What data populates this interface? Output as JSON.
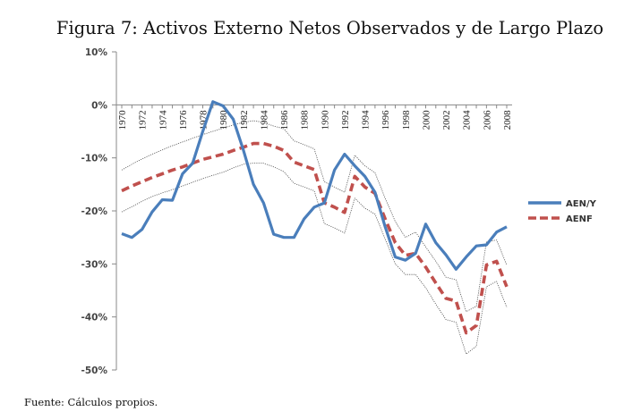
{
  "chart_data": {
    "type": "line",
    "title": "Figura 7: Activos Externo Netos Observados y de Largo Plazo",
    "source_note": "Fuente: Cálculos propios.",
    "xlabel": "",
    "ylabel": "",
    "ylim": [
      -50,
      10
    ],
    "y_ticks": [
      "10%",
      "0%",
      "-10%",
      "-20%",
      "-30%",
      "-40%",
      "-50%"
    ],
    "y_tick_values": [
      10,
      0,
      -10,
      -20,
      -30,
      -40,
      -50
    ],
    "x_ticks": [
      "1970",
      "1972",
      "1974",
      "1976",
      "1978",
      "1980",
      "1982",
      "1984",
      "1986",
      "1988",
      "1990",
      "1992",
      "1994",
      "1996",
      "1998",
      "2000",
      "2002",
      "2004",
      "2006",
      "2008"
    ],
    "x": [
      1970,
      1971,
      1972,
      1973,
      1974,
      1975,
      1976,
      1977,
      1978,
      1979,
      1980,
      1981,
      1982,
      1983,
      1984,
      1985,
      1986,
      1987,
      1988,
      1989,
      1990,
      1991,
      1992,
      1993,
      1994,
      1995,
      1996,
      1997,
      1998,
      1999,
      2000,
      2001,
      2002,
      2003,
      2004,
      2005,
      2006,
      2007,
      2008
    ],
    "grid": false,
    "legend_position": "right",
    "series": [
      {
        "name": "AEN/Y",
        "style": "solid",
        "color": "#4a7ebb",
        "values": [
          -24.3,
          -25.0,
          -23.5,
          -20.2,
          -17.9,
          -18.0,
          -13.0,
          -11.0,
          -5.0,
          0.6,
          -0.2,
          -2.7,
          -8.5,
          -15.0,
          -18.5,
          -24.4,
          -25.0,
          -25.0,
          -21.5,
          -19.3,
          -18.5,
          -12.3,
          -9.3,
          -11.5,
          -13.5,
          -16.5,
          -23.0,
          -28.7,
          -29.3,
          -28.0,
          -22.5,
          -26.0,
          -28.3,
          -31.0,
          -28.7,
          -26.6,
          -26.4,
          -24.0,
          -23.0
        ]
      },
      {
        "name": "AENF",
        "style": "dashed",
        "color": "#c0504d",
        "values": [
          -16.2,
          -15.3,
          -14.5,
          -13.7,
          -13.0,
          -12.3,
          -11.7,
          -11.0,
          -10.3,
          -9.8,
          -9.3,
          -8.6,
          -8.0,
          -7.3,
          -7.3,
          -7.8,
          -8.6,
          -10.8,
          -11.5,
          -12.2,
          -18.5,
          -19.3,
          -20.3,
          -13.5,
          -15.5,
          -16.7,
          -21.5,
          -26.0,
          -28.4,
          -28.0,
          -30.6,
          -33.6,
          -36.5,
          -37.0,
          -43.0,
          -41.6,
          -30.2,
          -29.5,
          -34.3
        ]
      },
      {
        "name": "AENF upper band",
        "style": "dotted",
        "color": "#555555",
        "in_legend": false,
        "values": [
          -12.3,
          -11.2,
          -10.2,
          -9.3,
          -8.5,
          -7.7,
          -7.0,
          -6.3,
          -5.6,
          -5.0,
          -4.4,
          -3.8,
          -3.3,
          -3.0,
          -3.3,
          -4.0,
          -4.5,
          -6.8,
          -7.5,
          -8.3,
          -14.5,
          -15.5,
          -16.5,
          -9.5,
          -11.5,
          -12.8,
          -17.6,
          -22.0,
          -25.0,
          -24.0,
          -26.8,
          -29.5,
          -32.5,
          -33.0,
          -39.0,
          -38.0,
          -25.8,
          -25.5,
          -30.2
        ]
      },
      {
        "name": "AENF lower band",
        "style": "dotted",
        "color": "#555555",
        "in_legend": false,
        "values": [
          -20.2,
          -19.2,
          -18.2,
          -17.3,
          -16.6,
          -16.0,
          -15.3,
          -14.6,
          -13.9,
          -13.3,
          -12.7,
          -11.9,
          -11.2,
          -11.0,
          -11.0,
          -11.7,
          -12.6,
          -14.8,
          -15.5,
          -16.2,
          -22.4,
          -23.2,
          -24.2,
          -17.6,
          -19.5,
          -20.6,
          -25.3,
          -30.0,
          -32.0,
          -32.0,
          -34.5,
          -37.6,
          -40.5,
          -41.0,
          -47.0,
          -45.5,
          -34.3,
          -33.3,
          -38.2
        ]
      }
    ]
  }
}
